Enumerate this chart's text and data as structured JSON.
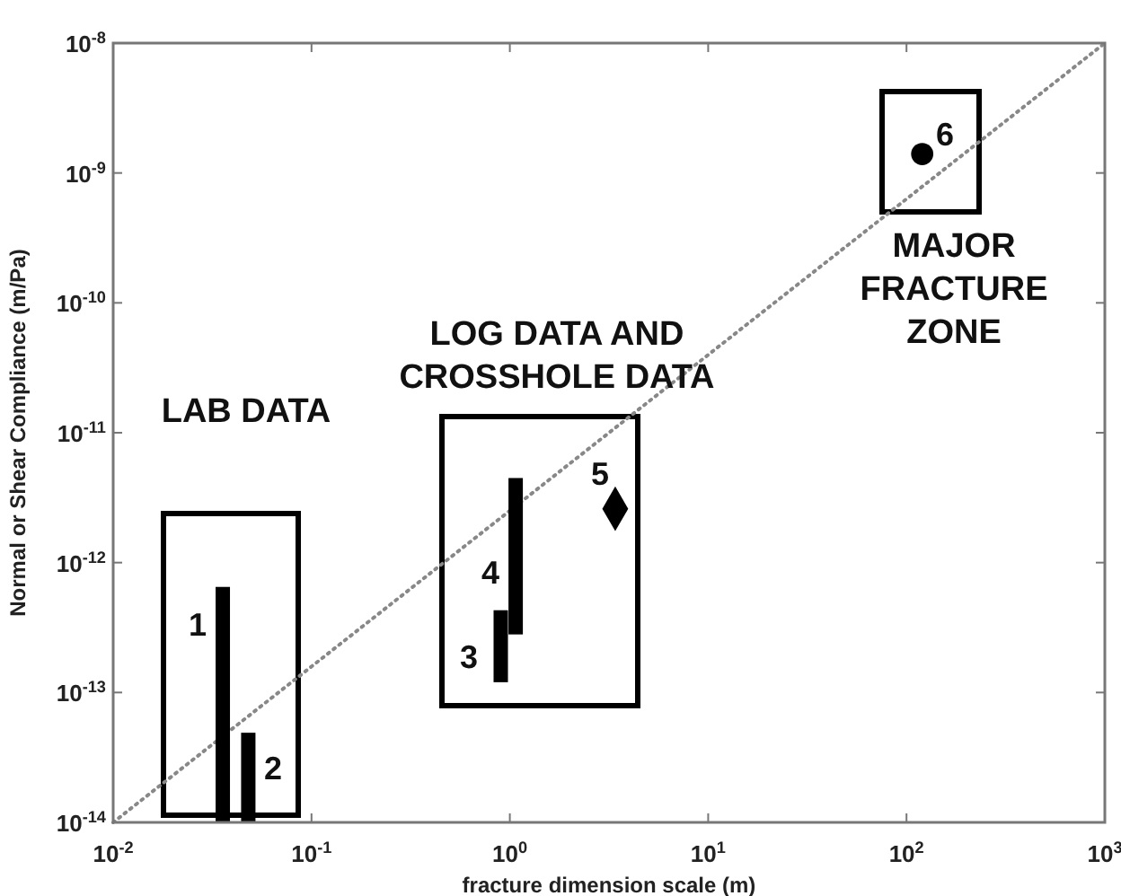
{
  "chart_data": {
    "type": "line",
    "xlabel": "fracture dimension scale (m)",
    "ylabel": "Normal or Shear Compliance (m/Pa)",
    "log": "xy",
    "grid": false,
    "xlim": [
      0.01,
      1000
    ],
    "ylim": [
      1e-14,
      1e-08
    ],
    "xticks": [
      {
        "value": 0.01,
        "label": "10$^{-2}$"
      },
      {
        "value": 0.1,
        "label": "10$^{-1}$"
      },
      {
        "value": 1,
        "label": "10$^{0}$"
      },
      {
        "value": 10,
        "label": "10$^{1}$"
      },
      {
        "value": 100,
        "label": "10$^{2}$"
      },
      {
        "value": 1000,
        "label": "10$^{3}$"
      }
    ],
    "yticks": [
      {
        "value": 1e-14,
        "label": "10$^{-14}$"
      },
      {
        "value": 1e-13,
        "label": "10$^{-13}$"
      },
      {
        "value": 1e-12,
        "label": "10$^{-12}$"
      },
      {
        "value": 1e-11,
        "label": "10$^{-11}$"
      },
      {
        "value": 1e-10,
        "label": "10$^{-10}$"
      },
      {
        "value": 1e-09,
        "label": "10$^{-9}$"
      },
      {
        "value": 1e-08,
        "label": "10$^{-8}$"
      }
    ],
    "series": [
      {
        "line_style": "dotted",
        "color": "#888888",
        "x": [
          0.01,
          1000
        ],
        "values": [
          1e-14,
          1e-08
        ]
      },
      {
        "type": "bar",
        "color": "#000000",
        "x": [
          0.0357,
          0.048,
          0.9,
          1.07
        ],
        "base": [
          1e-14,
          1e-14,
          1.2e-13,
          2.8e-13
        ],
        "values": [
          6.4e-13,
          3.9e-14,
          3.1e-13,
          4.2e-12
        ]
      },
      {
        "type": "scatter",
        "marker": "diamond",
        "color": "#000000",
        "x": [
          3.4
        ],
        "values": [
          2.6e-12
        ]
      },
      {
        "type": "scatter",
        "marker": "circle",
        "color": "#000000",
        "x": [
          120
        ],
        "values": [
          1.4e-09
        ]
      }
    ],
    "annotations": [
      "1",
      "2",
      "3",
      "4",
      "5",
      "6",
      "LAB DATA",
      "LOG DATA AND\nCROSSHOLE DATA",
      "MAJOR\nFRACTURE\nZONE"
    ]
  }
}
